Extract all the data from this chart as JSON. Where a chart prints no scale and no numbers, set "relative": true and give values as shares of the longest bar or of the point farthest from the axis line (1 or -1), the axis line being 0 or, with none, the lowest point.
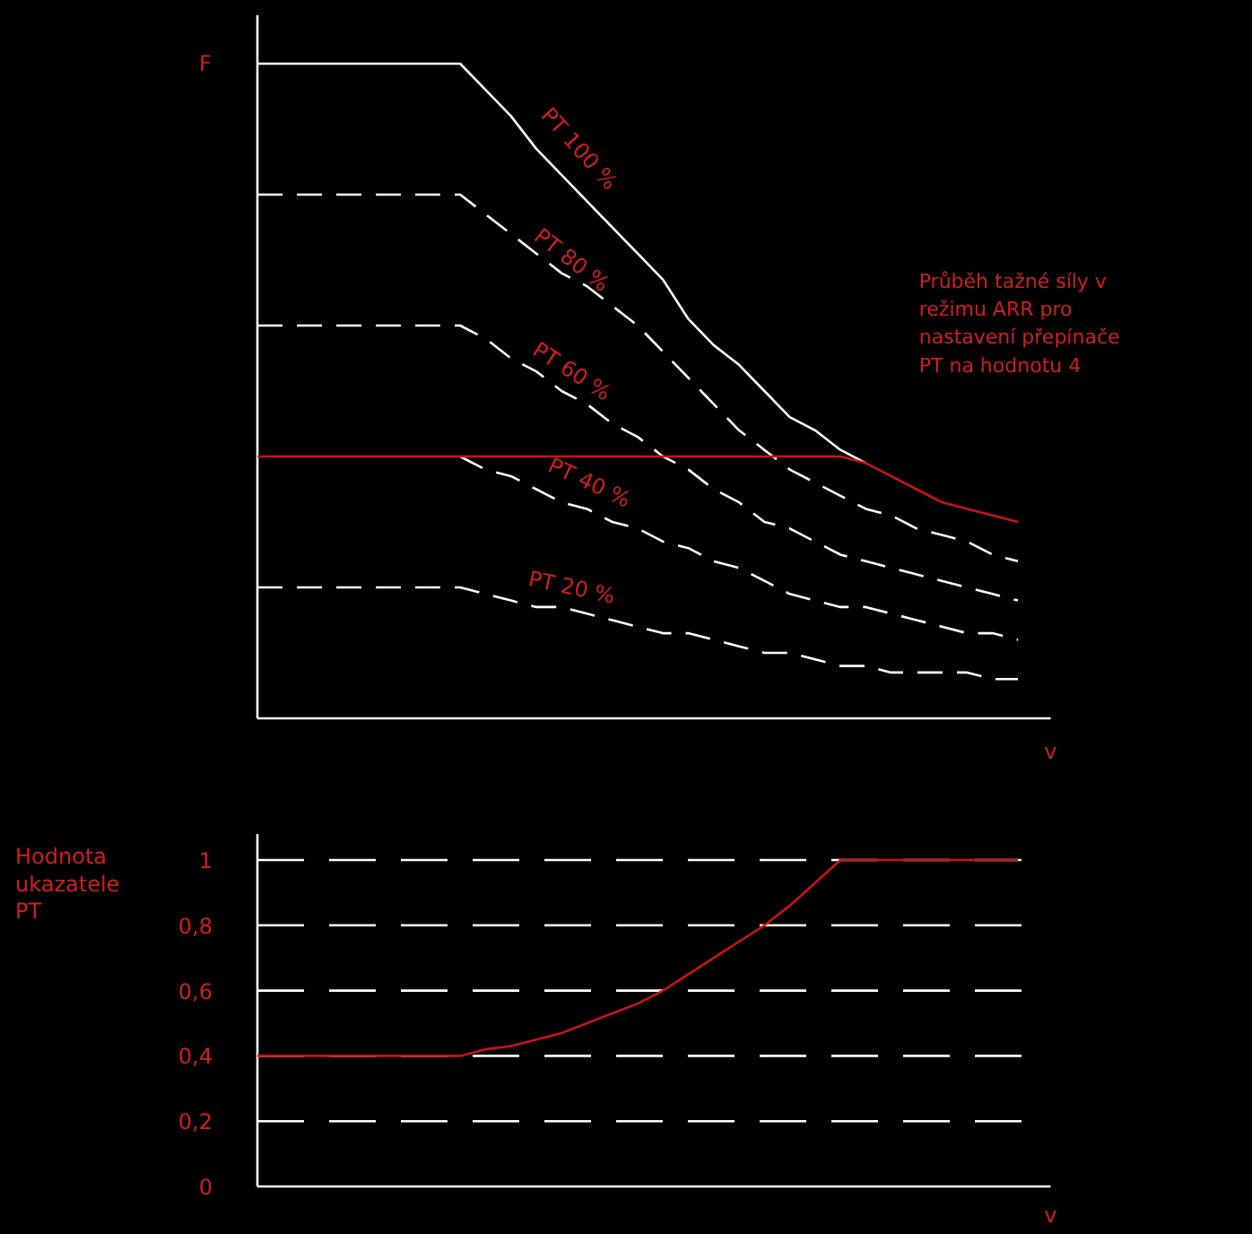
{
  "chart_data": [
    {
      "type": "line",
      "relative": true,
      "xlabel": "v",
      "ylabel": "F",
      "tick_labels": false,
      "categories": [
        null,
        null,
        null,
        null,
        null,
        null,
        null,
        null,
        null,
        null,
        null,
        null,
        null,
        null,
        null,
        null,
        null,
        null,
        null,
        null,
        null,
        null,
        null,
        null,
        null,
        null,
        null,
        null,
        null,
        null,
        null
      ],
      "series": [
        {
          "name": "PT 100 %",
          "color": "#ffffff",
          "line_style": "solid",
          "values": [
            1,
            1,
            1,
            1,
            1,
            1,
            1,
            1,
            1,
            0.96,
            0.92,
            0.87,
            0.83,
            0.79,
            0.75,
            0.71,
            0.67,
            0.61,
            0.57,
            0.54,
            0.5,
            0.46,
            0.44,
            0.41,
            0.39,
            null,
            null,
            null,
            null,
            null,
            null
          ]
        },
        {
          "name": "PT 80 %",
          "color": "#ffffff",
          "line_style": "dashed",
          "values": [
            0.8,
            0.8,
            0.8,
            0.8,
            0.8,
            0.8,
            0.8,
            0.8,
            0.8,
            0.77,
            0.74,
            0.71,
            0.68,
            0.66,
            0.63,
            0.6,
            0.56,
            0.52,
            0.48,
            0.44,
            0.41,
            0.38,
            0.36,
            0.34,
            0.32,
            0.31,
            0.29,
            0.28,
            0.27,
            0.25,
            0.24
          ]
        },
        {
          "name": "PT 60 %",
          "color": "#ffffff",
          "line_style": "dashed",
          "values": [
            0.6,
            0.6,
            0.6,
            0.6,
            0.6,
            0.6,
            0.6,
            0.6,
            0.6,
            0.58,
            0.55,
            0.53,
            0.5,
            0.48,
            0.45,
            0.43,
            0.4,
            0.38,
            0.35,
            0.33,
            0.3,
            0.29,
            0.27,
            0.25,
            0.24,
            0.23,
            0.22,
            0.21,
            0.2,
            0.19,
            0.18
          ]
        },
        {
          "name": "PT 40 %",
          "color": "#ffffff",
          "line_style": "dashed",
          "values": [
            null,
            null,
            null,
            null,
            null,
            null,
            null,
            null,
            0.4,
            0.38,
            0.37,
            0.35,
            0.33,
            0.32,
            0.3,
            0.29,
            0.27,
            0.26,
            0.24,
            0.23,
            0.21,
            0.19,
            0.18,
            0.17,
            0.17,
            0.16,
            0.15,
            0.14,
            0.13,
            0.13,
            0.12
          ]
        },
        {
          "name": "PT 20 %",
          "color": "#ffffff",
          "line_style": "dashed",
          "values": [
            0.2,
            0.2,
            0.2,
            0.2,
            0.2,
            0.2,
            0.2,
            0.2,
            0.2,
            0.19,
            0.18,
            0.17,
            0.17,
            0.16,
            0.15,
            0.14,
            0.13,
            0.13,
            0.12,
            0.11,
            0.1,
            0.1,
            0.09,
            0.08,
            0.08,
            0.07,
            0.07,
            0.07,
            0.07,
            0.06,
            0.06
          ]
        },
        {
          "color": "#cc1414",
          "line_style": "solid",
          "values": [
            0.4,
            0.4,
            0.4,
            0.4,
            0.4,
            0.4,
            0.4,
            0.4,
            0.4,
            0.4,
            0.4,
            0.4,
            0.4,
            0.4,
            0.4,
            0.4,
            0.4,
            0.4,
            0.4,
            0.4,
            0.4,
            0.4,
            0.4,
            0.4,
            0.39,
            0.37,
            0.35,
            0.33,
            0.32,
            0.31,
            0.3
          ]
        }
      ],
      "annotations": [
        "Průběh tažné síly v režimu ARR pro nastavení přepínače PT na hodnotu 4"
      ],
      "grid": false
    },
    {
      "type": "line",
      "xlabel": "v",
      "ylabel": "Hodnota ukazatele PT",
      "tick_labels": "y",
      "categories": [
        null,
        null,
        null,
        null,
        null,
        null,
        null,
        null,
        null,
        null,
        null,
        null,
        null,
        null,
        null,
        null,
        null,
        null,
        null,
        null,
        null,
        null,
        null,
        null,
        null,
        null,
        null,
        null,
        null,
        null,
        null
      ],
      "ylim": [
        0,
        1.08
      ],
      "yticks": [
        0,
        {
          "value": 0.2,
          "label": "0,2"
        },
        {
          "value": 0.4,
          "label": "0,4"
        },
        {
          "value": 0.6,
          "label": "0,6"
        },
        {
          "value": 0.8,
          "label": "0,8"
        },
        1
      ],
      "series": [
        {
          "color": "#cc1414",
          "line_style": "solid",
          "values": [
            0.4,
            0.4,
            0.4,
            0.4,
            0.4,
            0.4,
            0.4,
            0.4,
            0.4,
            0.42,
            0.43,
            0.45,
            0.47,
            0.5,
            0.53,
            0.56,
            0.6,
            0.65,
            0.7,
            0.75,
            0.8,
            0.86,
            0.93,
            1,
            1,
            1,
            1,
            1,
            1,
            1,
            1
          ]
        }
      ],
      "grid": "y"
    }
  ]
}
